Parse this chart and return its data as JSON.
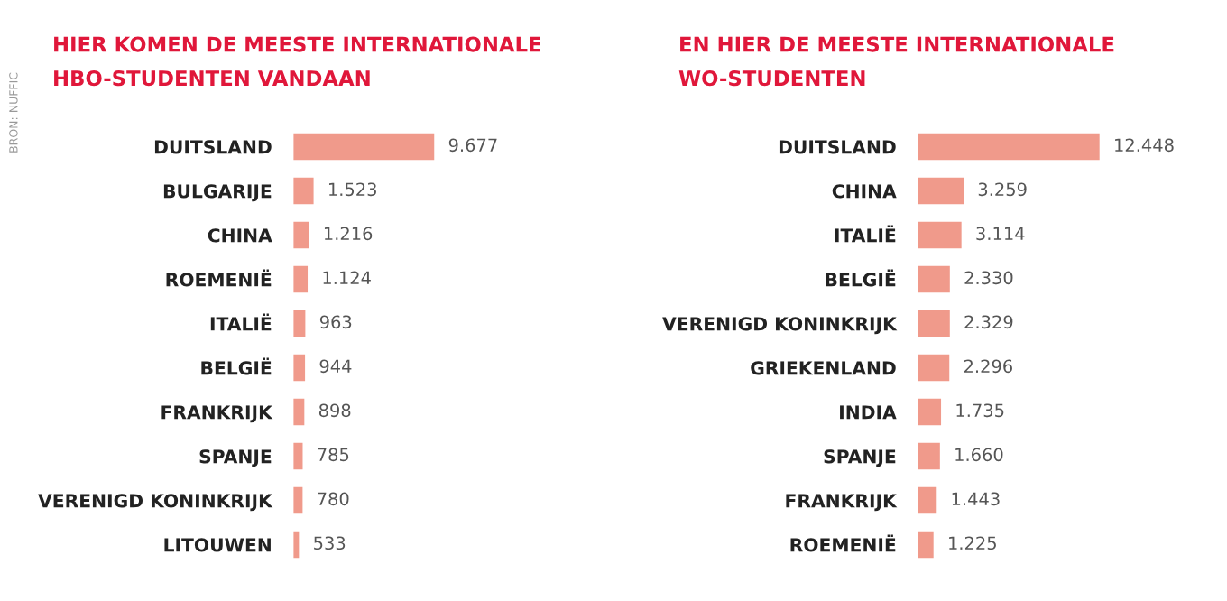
{
  "chart_data": [
    {
      "type": "bar",
      "orientation": "horizontal",
      "title": "HIER KOMEN DE MEESTE INTERNATIONALE\nHBO-STUDENTEN VANDAAN",
      "categories": [
        "DUITSLAND",
        "BULGARIJE",
        "CHINA",
        "ROEMENIË",
        "ITALIË",
        "BELGIË",
        "FRANKRIJK",
        "SPANJE",
        "VERENIGD KONINKRIJK",
        "LITOUWEN"
      ],
      "values": [
        9677,
        1523,
        1216,
        1124,
        963,
        944,
        898,
        785,
        780,
        533
      ],
      "value_labels": [
        "9.677",
        "1.523",
        "1.216",
        "1.124",
        "963",
        "944",
        "898",
        "785",
        "780",
        "533"
      ],
      "color": "#f09a8b",
      "grid": false,
      "legend": false,
      "tick_labels": "y",
      "annotations": [
        "BRON: NUFFIC"
      ]
    },
    {
      "type": "bar",
      "orientation": "horizontal",
      "title": "EN HIER DE MEESTE INTERNATIONALE\nWO-STUDENTEN",
      "categories": [
        "DUITSLAND",
        "CHINA",
        "ITALIË",
        "BELGIË",
        "VERENIGD KONINKRIJK",
        "GRIEKENLAND",
        "INDIA",
        "SPANJE",
        "FRANKRIJK",
        "ROEMENIË"
      ],
      "values": [
        12448,
        3259,
        3114,
        2330,
        2329,
        2296,
        1735,
        1660,
        1443,
        1225
      ],
      "value_labels": [
        "12.448",
        "3.259",
        "3.114",
        "2.330",
        "2.329",
        "2.296",
        "1.735",
        "1.660",
        "1.443",
        "1.225"
      ],
      "color": "#f09a8b",
      "grid": false,
      "legend": false,
      "tick_labels": "y"
    }
  ]
}
